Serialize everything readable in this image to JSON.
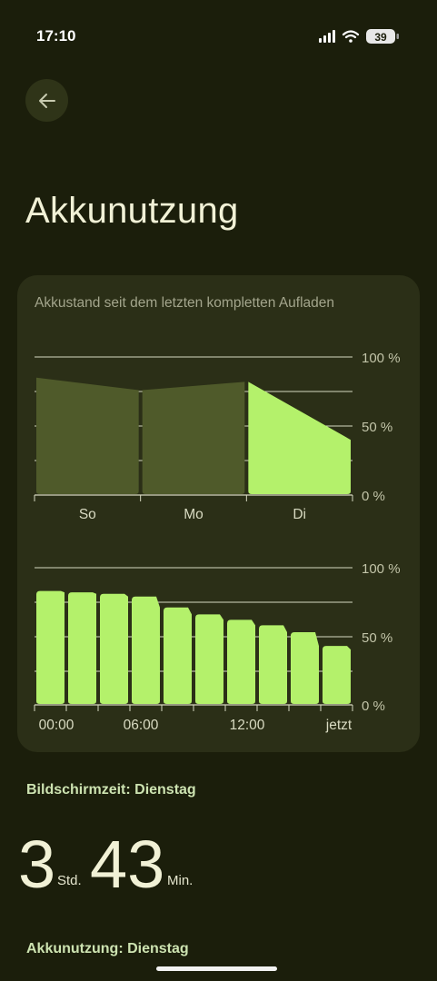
{
  "status_bar": {
    "time": "17:10",
    "battery": "39"
  },
  "page": {
    "title": "Akkunutzung"
  },
  "chart_card": {
    "caption": "Akkustand seit dem letzten kompletten Aufladen"
  },
  "chart_data": [
    {
      "type": "area",
      "categories": [
        "So",
        "Mo",
        "Di"
      ],
      "y_ticks": [
        "100 %",
        "50 %",
        "0 %"
      ],
      "ylim": [
        0,
        100
      ],
      "series": [
        {
          "segment": "So",
          "start": 85,
          "end": 76,
          "highlighted": false
        },
        {
          "segment": "Mo",
          "start": 76,
          "end": 82,
          "highlighted": false
        },
        {
          "segment": "Di",
          "start": 82,
          "end": 40,
          "highlighted": true
        }
      ],
      "colors": {
        "dim": "#4f5a2a",
        "highlight": "#b4f16b",
        "grid": "#d6d8c0"
      }
    },
    {
      "type": "bar",
      "x_tick_labels": [
        "00:00",
        "06:00",
        "12:00",
        "jetzt"
      ],
      "y_ticks": [
        "100 %",
        "50 %",
        "0 %"
      ],
      "ylim": [
        0,
        100
      ],
      "values": [
        83,
        82,
        81,
        79,
        71,
        66,
        62,
        58,
        53,
        43
      ],
      "color": "#b4f16b"
    }
  ],
  "screen_time": {
    "label": "Bildschirmzeit: Dienstag",
    "hours": "3",
    "hours_unit": "Std.",
    "minutes": "43",
    "minutes_unit": "Min."
  },
  "battery_usage": {
    "label": "Akkunutzung: Dienstag"
  }
}
